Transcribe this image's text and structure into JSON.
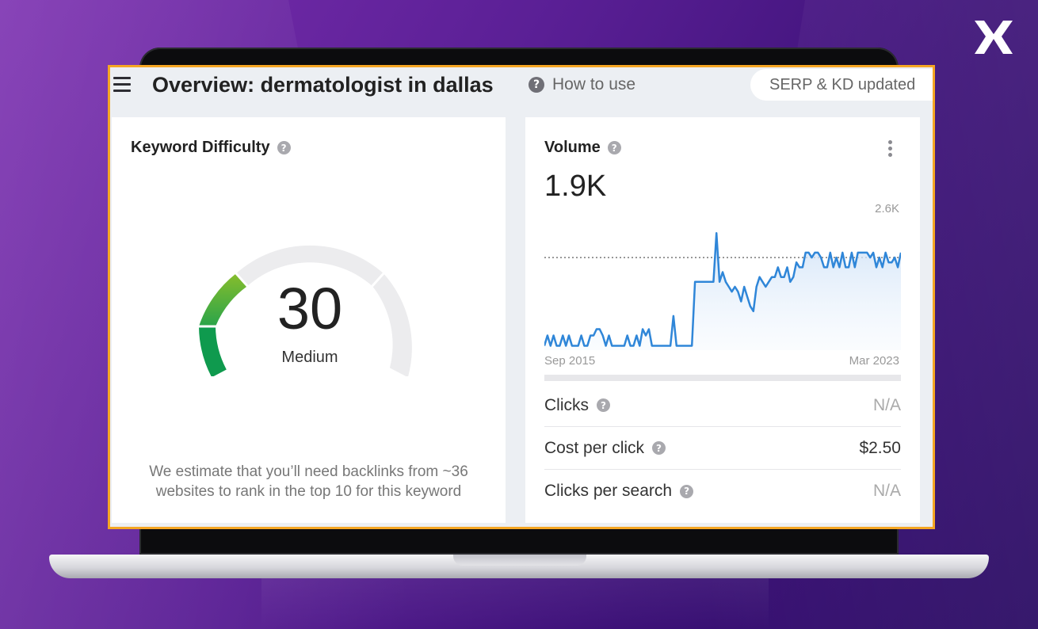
{
  "colors": {
    "accent_border": "#f5a623",
    "gauge_green_light": "#7cbb2e",
    "gauge_green_dark": "#0c9a4e",
    "chart_line": "#2f86d8",
    "background_purple": "#5a1f95"
  },
  "header": {
    "menu_icon": "hamburger-icon",
    "title": "Overview: dermatologist in dallas",
    "help_label": "How to use",
    "status_pill": "SERP & KD updated"
  },
  "keyword_difficulty": {
    "title": "Keyword Difficulty",
    "score": "30",
    "score_fraction": 0.3,
    "level": "Medium",
    "note": "We estimate that you’ll need backlinks from ~36 websites to rank in the top 10 for this keyword"
  },
  "volume": {
    "title": "Volume",
    "value": "1.9K",
    "metrics": [
      {
        "label": "Clicks",
        "value": "N/A"
      },
      {
        "label": "Cost per click",
        "value": "$2.50"
      },
      {
        "label": "Clicks per search",
        "value": "N/A"
      }
    ]
  },
  "chart_data": {
    "type": "line",
    "ymax_label": "2.6K",
    "x_start_label": "Sep 2015",
    "x_end_label": "Mar 2023",
    "ylim": [
      0,
      2600
    ],
    "reference_line": 1900,
    "values": [
      90,
      300,
      90,
      300,
      90,
      90,
      300,
      90,
      300,
      90,
      90,
      90,
      300,
      90,
      90,
      300,
      300,
      430,
      430,
      300,
      90,
      300,
      90,
      90,
      90,
      90,
      90,
      300,
      90,
      90,
      300,
      90,
      430,
      300,
      430,
      90,
      90,
      90,
      90,
      90,
      90,
      90,
      700,
      90,
      90,
      90,
      90,
      90,
      90,
      1400,
      1400,
      1400,
      1400,
      1400,
      1400,
      1400,
      2400,
      1400,
      1600,
      1400,
      1300,
      1200,
      1300,
      1200,
      1000,
      1300,
      1100,
      900,
      800,
      1300,
      1500,
      1400,
      1300,
      1400,
      1500,
      1500,
      1700,
      1500,
      1500,
      1700,
      1400,
      1500,
      1800,
      1700,
      1700,
      2000,
      2000,
      1900,
      2000,
      2000,
      1900,
      1700,
      1700,
      2000,
      1700,
      1900,
      1700,
      2000,
      1700,
      1700,
      2000,
      1700,
      2000,
      2000,
      2000,
      2000,
      1900,
      2000,
      1700,
      1900,
      1700,
      2000,
      1800,
      1800,
      1900,
      1700,
      2000
    ]
  }
}
